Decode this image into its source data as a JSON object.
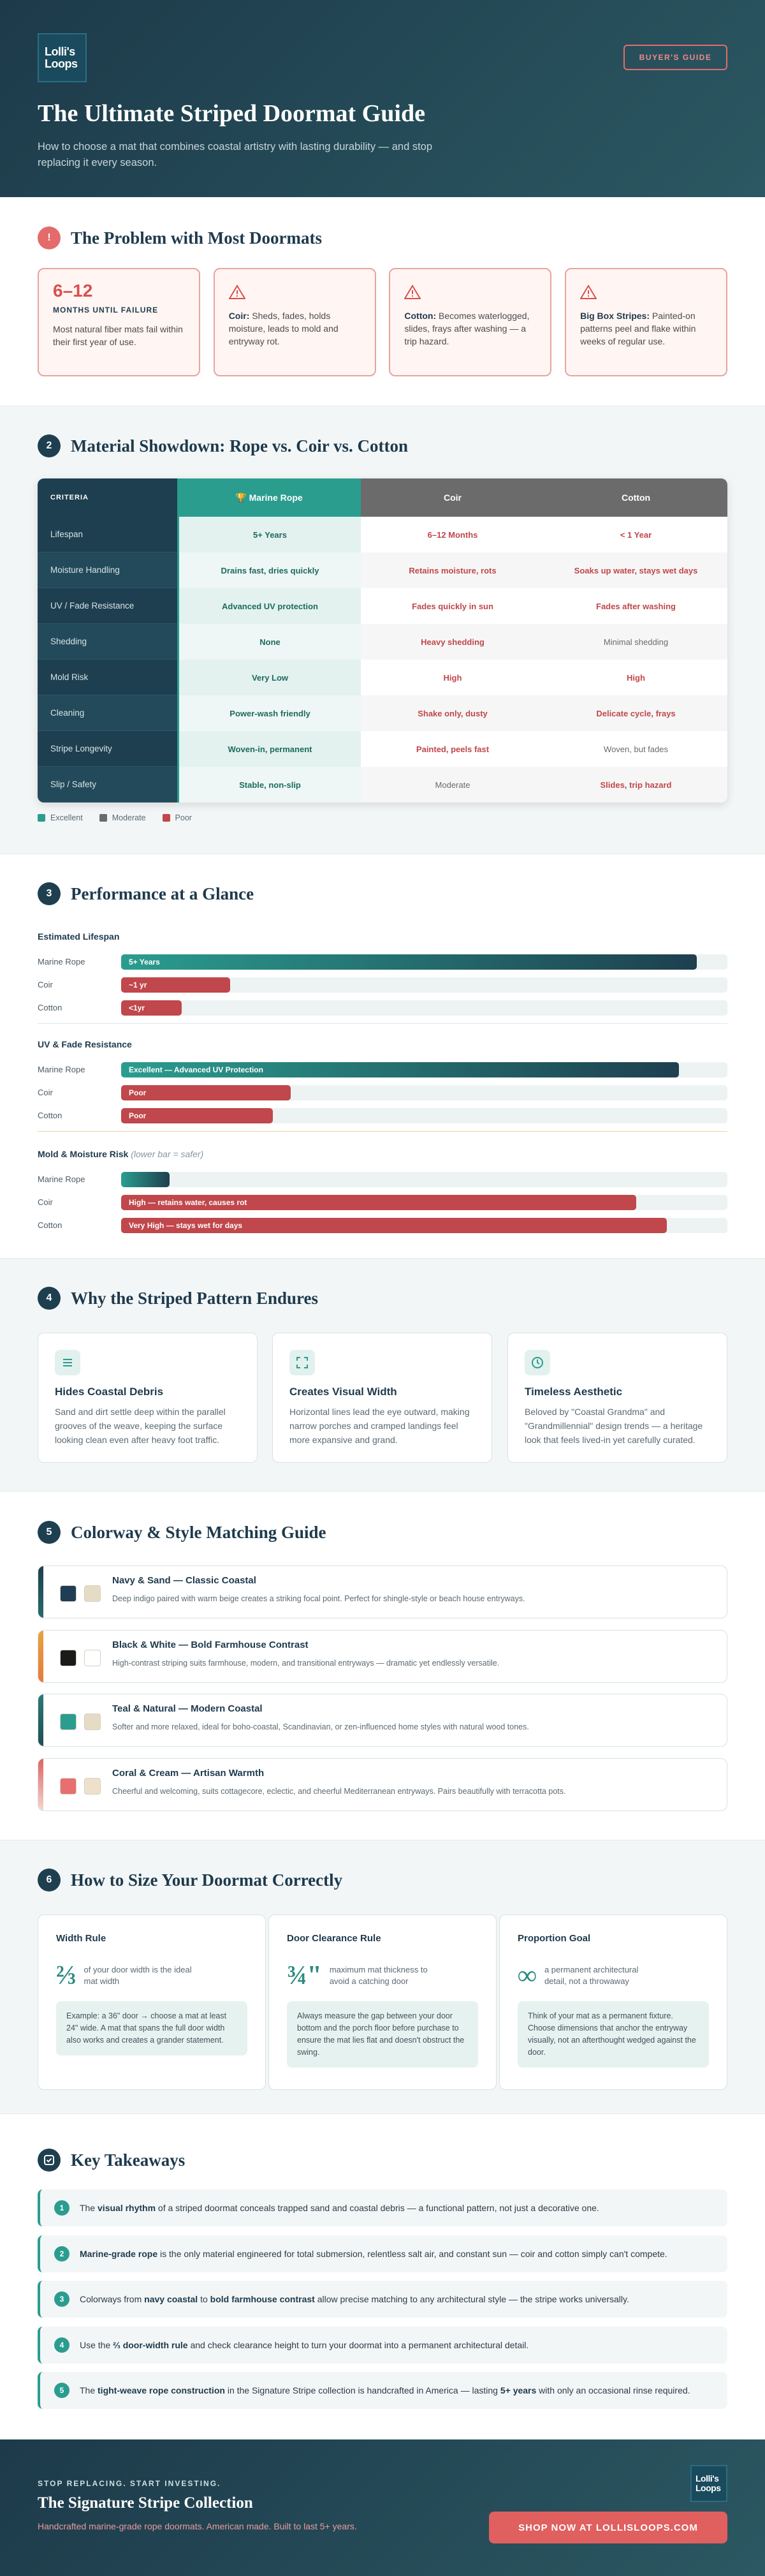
{
  "header": {
    "logo": [
      "Lolli's",
      "Loops"
    ],
    "badge": "BUYER'S GUIDE",
    "title": "The Ultimate Striped Doormat Guide",
    "subtitle": "How to choose a mat that combines coastal artistry with lasting durability — and stop replacing it every season."
  },
  "problem": {
    "icon": "!",
    "title": "The Problem with Most Doormats",
    "stat": {
      "value": "6–12",
      "label": "MONTHS UNTIL FAILURE",
      "text": "Most natural fiber mats fail within their first year of use."
    },
    "cards": [
      {
        "lead": "Coir:",
        "text": "Sheds, fades, holds moisture, leads to mold and entryway rot."
      },
      {
        "lead": "Cotton:",
        "text": "Becomes waterlogged, slides, frays after washing — a trip hazard."
      },
      {
        "lead": "Big Box Stripes:",
        "text": "Painted-on patterns peel and flake within weeks of regular use."
      }
    ]
  },
  "materials": {
    "number": 2,
    "title": "Material Showdown: Rope vs. Coir vs. Cotton",
    "table": {
      "header": [
        "CRITERIA",
        "🏆 Marine Rope",
        "Coir",
        "Cotton"
      ],
      "rows": [
        [
          "Lifespan",
          "5+ Years",
          "6–12 Months",
          "< 1 Year"
        ],
        [
          "Moisture Handling",
          "Drains fast, dries quickly",
          "Retains moisture, rots",
          "Soaks up water, stays wet days"
        ],
        [
          "UV / Fade Resistance",
          "Advanced UV protection",
          "Fades quickly in sun",
          "Fades after washing"
        ],
        [
          "Shedding",
          "None",
          "Heavy shedding",
          "Minimal shedding"
        ],
        [
          "Mold Risk",
          "Very Low",
          "High",
          "High"
        ],
        [
          "Cleaning",
          "Power-wash friendly",
          "Shake only, dusty",
          "Delicate cycle, frays"
        ],
        [
          "Stripe Longevity",
          "Woven-in, permanent",
          "Painted, peels fast",
          "Woven, but fades"
        ],
        [
          "Slip / Safety",
          "Stable, non-slip",
          "Moderate",
          "Slides, trip hazard"
        ]
      ]
    },
    "legend": [
      {
        "name": "Excellent",
        "color": "#2a9d8f"
      },
      {
        "name": "Moderate",
        "color": "#6b6b6b"
      },
      {
        "name": "Poor",
        "color": "#c0474b"
      }
    ]
  },
  "performance": {
    "number": 3,
    "title": "Performance at a Glance",
    "groups": [
      {
        "title": "Estimated Lifespan",
        "bars": [
          {
            "name": "Marine Rope",
            "value": 95,
            "label": "5+ Years"
          },
          {
            "name": "Coir",
            "value": 18,
            "label": "~1 yr"
          },
          {
            "name": "Cotton",
            "value": 10,
            "label": "<1yr"
          }
        ]
      },
      {
        "title": "UV & Fade Resistance",
        "bars": [
          {
            "name": "Marine Rope",
            "value": 92,
            "label": "Excellent — Advanced UV Protection"
          },
          {
            "name": "Coir",
            "value": 28,
            "label": "Poor"
          },
          {
            "name": "Cotton",
            "value": 25,
            "label": "Poor"
          }
        ]
      },
      {
        "title": "Mold & Moisture Risk",
        "note": "(lower bar = safer)",
        "bars": [
          {
            "name": "Marine Rope",
            "value": 8
          },
          {
            "name": "Coir",
            "value": 85,
            "label": "High — retains water, causes rot"
          },
          {
            "name": "Cotton",
            "value": 90,
            "label": "Very High — stays wet for days"
          }
        ]
      }
    ]
  },
  "why": {
    "number": 4,
    "title": "Why the Striped Pattern Endures",
    "cards": [
      {
        "title": "Hides Coastal Debris",
        "text": "Sand and dirt settle deep within the parallel grooves of the weave, keeping the surface looking clean even after heavy foot traffic."
      },
      {
        "title": "Creates Visual Width",
        "text": "Horizontal lines lead the eye outward, making narrow porches and cramped landings feel more expansive and grand."
      },
      {
        "title": "Timeless Aesthetic",
        "text": "Beloved by \"Coastal Grandma\" and \"Grandmillennial\" design trends — a heritage look that feels lived-in yet carefully curated."
      }
    ]
  },
  "colorways": {
    "number": 5,
    "title": "Colorway & Style Matching Guide",
    "items": [
      {
        "title": "Navy & Sand — Classic Coastal",
        "text": "Deep indigo paired with warm beige creates a striking focal point. Perfect for shingle-style or beach house entryways.",
        "accent": [
          "#1e3f4f",
          "#2a6a6a"
        ],
        "swatches": [
          "#1f3d55",
          "#e6dcc6"
        ]
      },
      {
        "title": "Black & White — Bold Farmhouse Contrast",
        "text": "High-contrast striping suits farmhouse, modern, and transitional entryways — dramatic yet endlessly versatile.",
        "accent": [
          "#e8a33d",
          "#e87a3d"
        ],
        "swatches": [
          "#1a1a1a",
          "#ffffff"
        ]
      },
      {
        "title": "Teal & Natural — Modern Coastal",
        "text": "Softer and more relaxed, ideal for boho-coastal, Scandinavian, or zen-influenced home styles with natural wood tones.",
        "accent": [
          "#2a7a74",
          "#1e4f55"
        ],
        "swatches": [
          "#2a9d8f",
          "#e6dcc6"
        ]
      },
      {
        "title": "Coral & Cream — Artisan Warmth",
        "text": "Cheerful and welcoming, suits cottagecore, eclectic, and cheerful Mediterranean entryways. Pairs beautifully with terracotta pots.",
        "accent": [
          "#e06262",
          "#f4d6cf"
        ],
        "swatches": [
          "#e76f6f",
          "#efe0cc"
        ]
      }
    ]
  },
  "sizing": {
    "number": 6,
    "title": "How to Size Your Doormat Correctly",
    "cards": [
      {
        "label": "Width Rule",
        "figure": "⅔",
        "caption": "of your door width is the ideal mat width",
        "note": "Example: a 36\" door → choose a mat at least 24\" wide. A mat that spans the full door width also works and creates a grander statement."
      },
      {
        "label": "Door Clearance Rule",
        "figure": "¾\"",
        "caption": "maximum mat thickness to avoid a catching door",
        "note": "Always measure the gap between your door bottom and the porch floor before purchase to ensure the mat lies flat and doesn't obstruct the swing."
      },
      {
        "label": "Proportion Goal",
        "figure": "∞",
        "caption": "a permanent architectural detail, not a throwaway",
        "note": "Think of your mat as a permanent fixture. Choose dimensions that anchor the entryway visually, not an afterthought wedged against the door."
      }
    ]
  },
  "takeaways": {
    "title": "Key Takeaways",
    "items": [
      {
        "number": 1,
        "parts": [
          {
            "text": "The "
          },
          {
            "text": "visual rhythm",
            "bold": true
          },
          {
            "text": " of a striped doormat conceals trapped sand and coastal debris — a functional pattern, not just a decorative one."
          }
        ]
      },
      {
        "number": 2,
        "parts": [
          {
            "text": "Marine-grade rope",
            "bold": true
          },
          {
            "text": " is the only material engineered for total submersion, relentless salt air, and constant sun — coir and cotton simply can't compete."
          }
        ]
      },
      {
        "number": 3,
        "parts": [
          {
            "text": "Colorways from "
          },
          {
            "text": "navy coastal",
            "bold": true
          },
          {
            "text": " to "
          },
          {
            "text": "bold farmhouse contrast",
            "bold": true
          },
          {
            "text": " allow precise matching to any architectural style — the stripe works universally."
          }
        ]
      },
      {
        "number": 4,
        "parts": [
          {
            "text": "Use the "
          },
          {
            "text": "⅔ door-width rule",
            "bold": true
          },
          {
            "text": " and check clearance height to turn your doormat into a permanent architectural detail."
          }
        ]
      },
      {
        "number": 5,
        "parts": [
          {
            "text": "The "
          },
          {
            "text": "tight-weave rope construction",
            "bold": true
          },
          {
            "text": " in the Signature Stripe collection is handcrafted in America — lasting "
          },
          {
            "text": "5+ years",
            "bold": true
          },
          {
            "text": " with only an occasional rinse required."
          }
        ]
      }
    ]
  },
  "footer": {
    "kicker": "STOP REPLACING. START INVESTING.",
    "title": "The Signature Stripe Collection",
    "text": "Handcrafted marine-grade rope doormats. American made. Built to last 5+ years.",
    "button": "SHOP NOW AT LOLLISLOOPS.COM",
    "logo": [
      "Lolli's",
      "Loops"
    ]
  }
}
